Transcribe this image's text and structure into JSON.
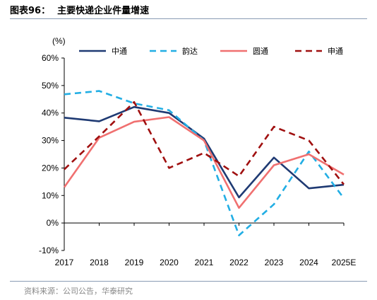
{
  "figure": {
    "label": "图表96：",
    "title": "主要快递企业件量增速",
    "source": "资料来源：公司公告，华泰研究"
  },
  "chart_data": {
    "type": "line",
    "ylabel": "(%)",
    "x": [
      "2017",
      "2018",
      "2019",
      "2020",
      "2021",
      "2022",
      "2023",
      "2024",
      "2025E"
    ],
    "ylim": [
      -10,
      60
    ],
    "yticks": [
      "-10%",
      "0%",
      "10%",
      "20%",
      "30%",
      "40%",
      "50%",
      "60%"
    ],
    "ytick_values": [
      -10,
      0,
      10,
      20,
      30,
      40,
      50,
      60
    ],
    "grid": false,
    "legend_position": "top",
    "series": [
      {
        "name": "中通",
        "color": "#1f3a73",
        "style": "solid",
        "values": [
          38.3,
          37.0,
          42.2,
          40.0,
          30.7,
          9.3,
          23.8,
          12.6,
          13.9
        ]
      },
      {
        "name": "韵达",
        "color": "#22aee4",
        "style": "dash",
        "values": [
          46.8,
          48.0,
          43.5,
          41.0,
          30.0,
          -4.5,
          6.8,
          26.0,
          9.0
        ]
      },
      {
        "name": "圆通",
        "color": "#f07070",
        "style": "solid",
        "values": [
          13.0,
          31.0,
          36.8,
          38.5,
          30.0,
          5.5,
          21.0,
          25.0,
          17.6
        ]
      },
      {
        "name": "申通",
        "color": "#a01010",
        "style": "dash",
        "values": [
          19.5,
          31.5,
          44.0,
          20.0,
          25.5,
          17.0,
          35.0,
          30.0,
          14.0
        ]
      }
    ]
  }
}
